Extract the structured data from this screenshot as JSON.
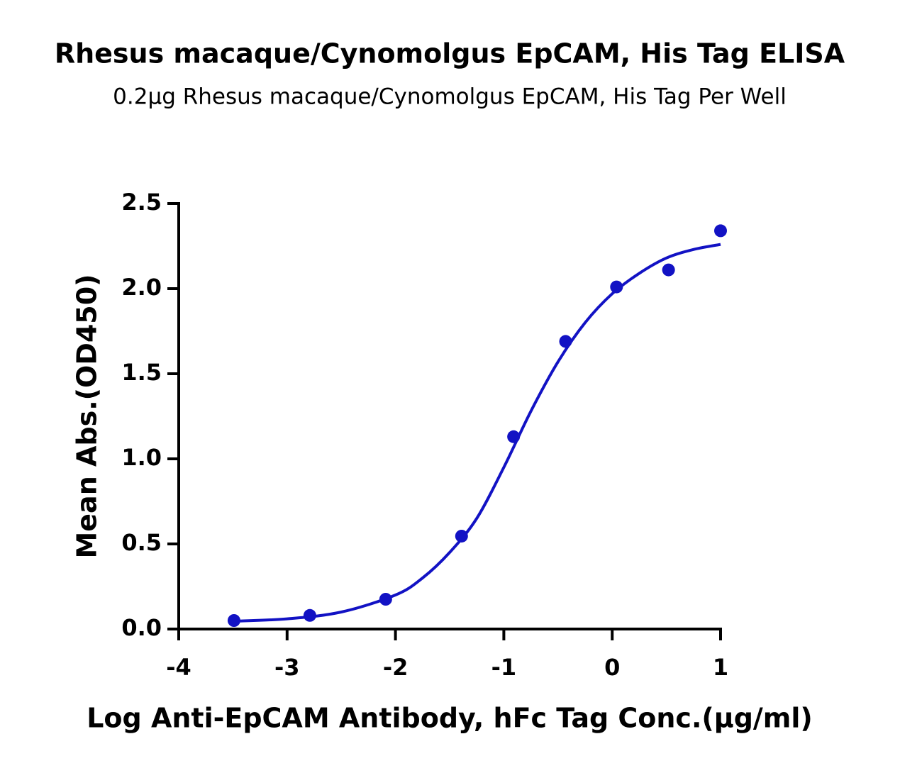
{
  "chart_data": {
    "type": "scatter",
    "title": "Rhesus macaque/Cynomolgus EpCAM, His Tag ELISA",
    "subtitle": "0.2μg Rhesus macaque/Cynomolgus EpCAM, His Tag Per Well",
    "x_label": "Log Anti-EpCAM Antibody, hFc Tag Conc.(μg/ml)",
    "y_label": "Mean Abs.(OD450)",
    "color": "#1212c4",
    "x": [
      -3.49,
      -2.79,
      -2.09,
      -1.39,
      -0.91,
      -0.43,
      0.04,
      0.52,
      1.0
    ],
    "values": [
      0.05,
      0.08,
      0.175,
      0.546,
      1.13,
      1.69,
      2.01,
      2.11,
      2.34
    ],
    "fit_x": [
      -3.5,
      -3.0,
      -2.5,
      -2.0,
      -1.75,
      -1.5,
      -1.25,
      -1.0,
      -0.75,
      -0.5,
      -0.25,
      0,
      0.25,
      0.5,
      0.75,
      1.0
    ],
    "fit_values": [
      0.046,
      0.06,
      0.1,
      0.2,
      0.3,
      0.45,
      0.65,
      0.95,
      1.28,
      1.57,
      1.8,
      1.97,
      2.09,
      2.18,
      2.23,
      2.26
    ],
    "xlim": [
      -4,
      1
    ],
    "xticks": [
      -4,
      -3,
      -2,
      -1,
      0,
      1
    ],
    "ylim": [
      0,
      2.5
    ],
    "yticks": [
      {
        "value": 0,
        "label": "0.0"
      },
      0.5,
      {
        "value": 1,
        "label": "1.0"
      },
      1.5,
      {
        "value": 2,
        "label": "2.0"
      },
      2.5
    ]
  }
}
